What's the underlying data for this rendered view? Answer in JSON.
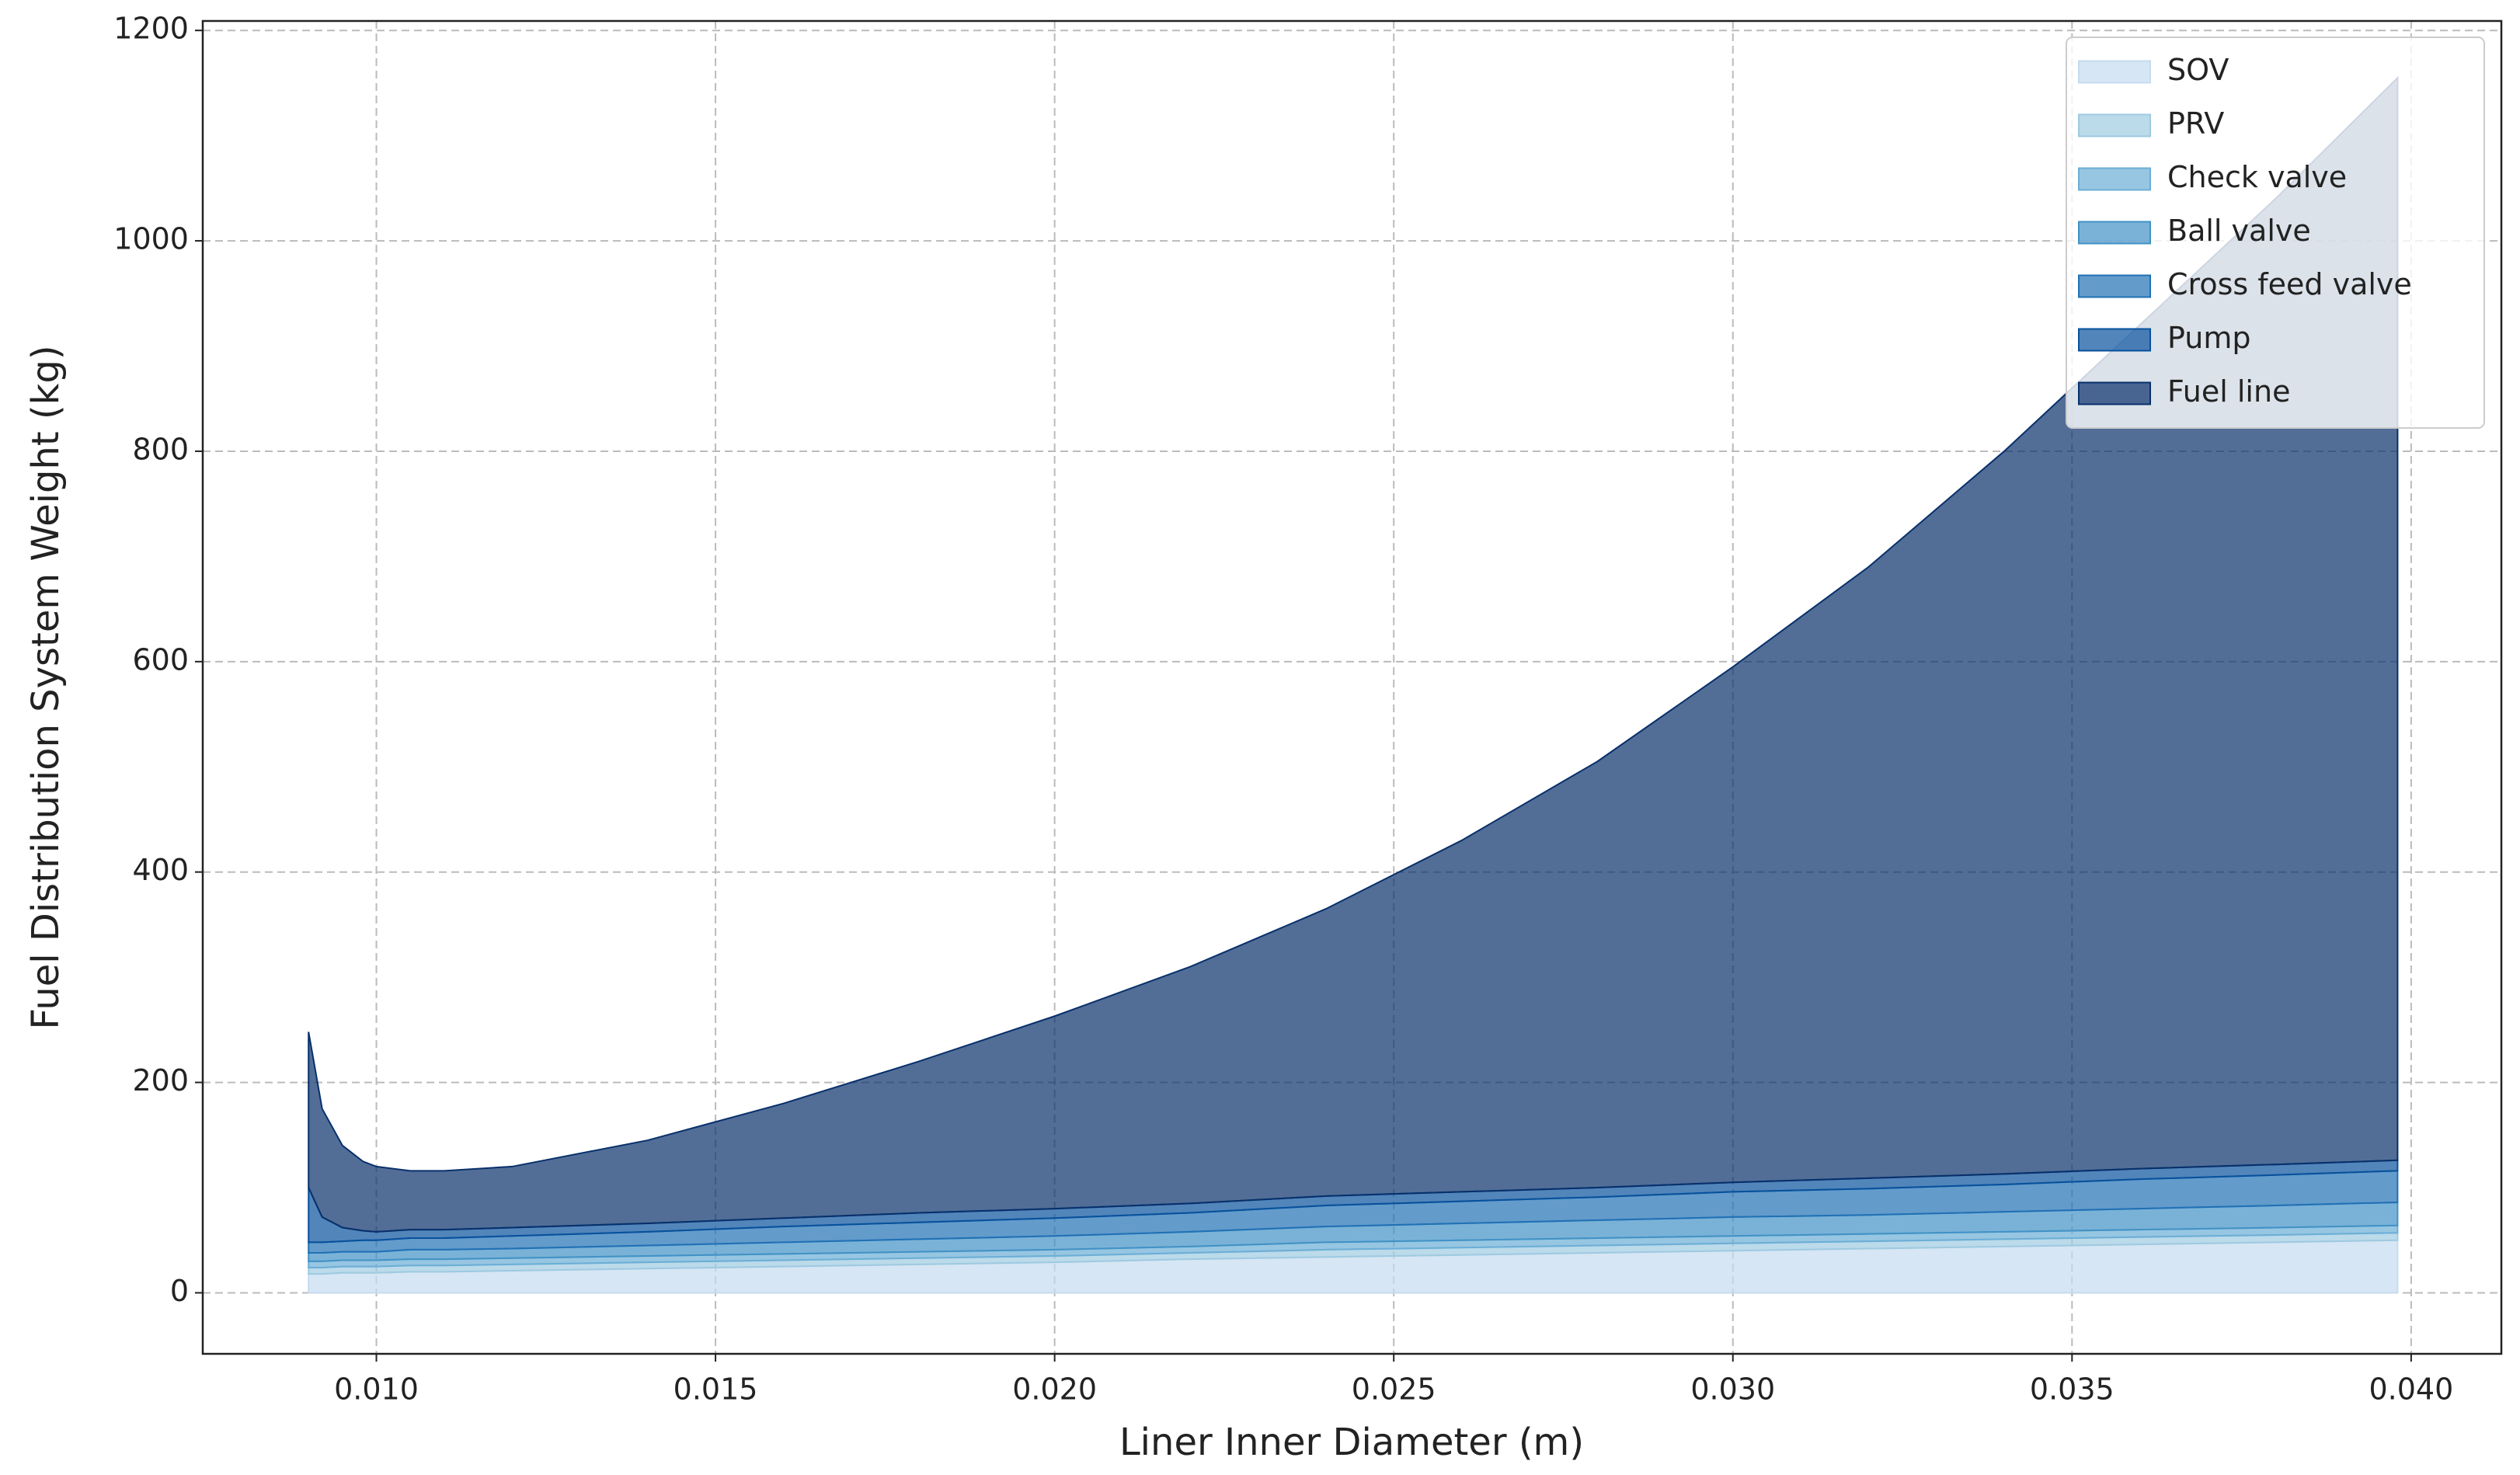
{
  "chart_data": {
    "type": "stacked_area",
    "x_label": "Liner Inner Diameter (m)",
    "y_label": "Fuel Distribution System Weight (kg)",
    "x": [
      0.009,
      0.0092,
      0.0095,
      0.0098,
      0.01,
      0.0105,
      0.011,
      0.012,
      0.014,
      0.016,
      0.018,
      0.02,
      0.022,
      0.024,
      0.026,
      0.028,
      0.03,
      0.032,
      0.034,
      0.036,
      0.038,
      0.0398
    ],
    "series": [
      {
        "name": "SOV",
        "color": "#c6dbef",
        "values": [
          18,
          18,
          19,
          19,
          19,
          20,
          20,
          21,
          23,
          25,
          27,
          29,
          32,
          34,
          36,
          38,
          40,
          42,
          44,
          46,
          48,
          50
        ]
      },
      {
        "name": "PRV",
        "color": "#9ecae1",
        "values": [
          6,
          6,
          6,
          6,
          6,
          6,
          6,
          6,
          6,
          6,
          6,
          6,
          6,
          7,
          7,
          7,
          7,
          7,
          7,
          7,
          7,
          7
        ]
      },
      {
        "name": "Check valve",
        "color": "#6baed6",
        "values": [
          6,
          6,
          6,
          6,
          6,
          6,
          6,
          6,
          6,
          6,
          6,
          6,
          6,
          7,
          7,
          7,
          7,
          7,
          7,
          7,
          7,
          7
        ]
      },
      {
        "name": "Ball valve",
        "color": "#4292c6",
        "values": [
          8,
          8,
          8,
          8,
          8,
          9,
          9,
          9,
          10,
          11,
          12,
          13,
          14,
          15,
          16,
          17,
          18,
          18,
          19,
          20,
          21,
          22
        ]
      },
      {
        "name": "Cross feed valve",
        "color": "#2171b5",
        "values": [
          10,
          10,
          10,
          11,
          11,
          11,
          11,
          12,
          13,
          15,
          16,
          17,
          18,
          20,
          21,
          22,
          24,
          25,
          26,
          28,
          29,
          30
        ]
      },
      {
        "name": "Pump",
        "color": "#08519c",
        "values": [
          52,
          24,
          13,
          9,
          8,
          8,
          8,
          8,
          8,
          8,
          9,
          9,
          9,
          9,
          9,
          9,
          9,
          10,
          10,
          10,
          10,
          10
        ]
      },
      {
        "name": "Fuel line",
        "color": "#08306b",
        "values": [
          148,
          103,
          78,
          66,
          62,
          56,
          56,
          58,
          79,
          109,
          144,
          183,
          225,
          273,
          334,
          405,
          490,
          581,
          687,
          802,
          918,
          1029
        ]
      }
    ],
    "xlim": [
      0.00744,
      0.04133
    ],
    "ylim": [
      -58,
      1209
    ],
    "xticks": [
      {
        "value": 0.01,
        "label": "0.010"
      },
      {
        "value": 0.015,
        "label": "0.015"
      },
      {
        "value": 0.02,
        "label": "0.020"
      },
      {
        "value": 0.025,
        "label": "0.025"
      },
      {
        "value": 0.03,
        "label": "0.030"
      },
      {
        "value": 0.035,
        "label": "0.035"
      },
      {
        "value": 0.04,
        "label": "0.040"
      }
    ],
    "yticks": [
      0,
      200,
      400,
      600,
      800,
      1000,
      1200
    ],
    "grid": true,
    "legend": "upper right",
    "fill_opacity": 0.7
  }
}
